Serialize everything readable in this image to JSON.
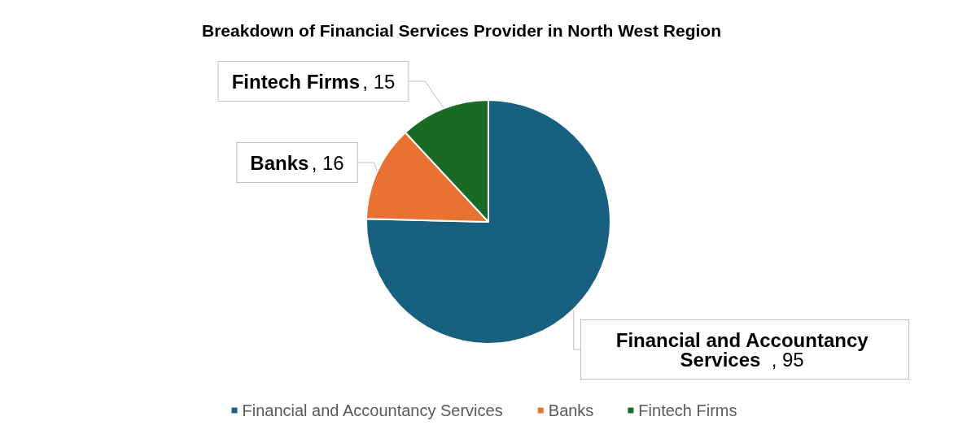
{
  "chart_data": {
    "type": "pie",
    "title": "Breakdown of Financial Services Provider in North West Region",
    "categories": [
      "Financial and Accountancy Services",
      "Banks",
      "Fintech Firms"
    ],
    "values": [
      95,
      16,
      15
    ],
    "value_labels": [
      ", 95",
      ", 16",
      ", 15"
    ],
    "colors": [
      "#17607f",
      "#e97132",
      "#196b24"
    ],
    "legend": "bottom"
  }
}
